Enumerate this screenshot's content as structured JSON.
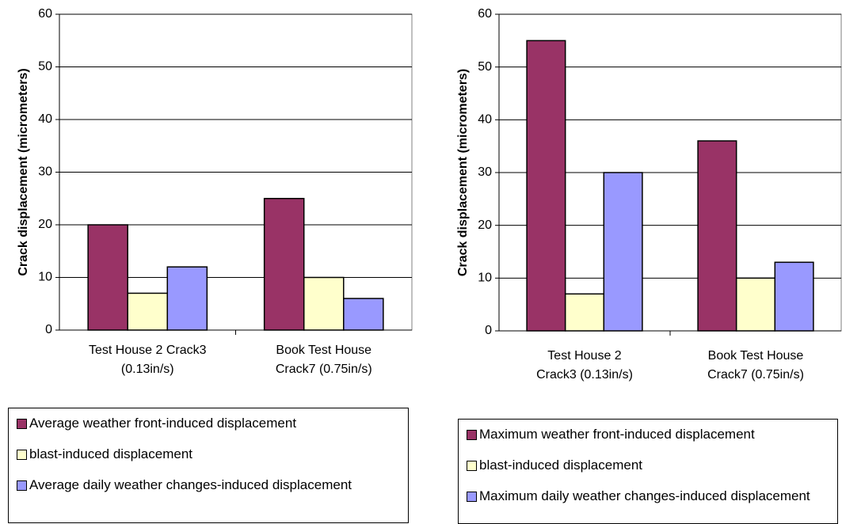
{
  "chart_data": [
    {
      "type": "bar",
      "y_label": "Crack displacement (micrometers)",
      "categories": [
        [
          "Test House 2  Crack3",
          "(0.13in/s)"
        ],
        [
          "Book Test House",
          "Crack7 (0.75in/s)"
        ]
      ],
      "series": [
        {
          "name": "Average weather front-induced displacement",
          "color": "#993366",
          "values": [
            20,
            25
          ]
        },
        {
          "name": "blast-induced displacement",
          "color": "#ffffcc",
          "values": [
            7,
            10
          ]
        },
        {
          "name": "Average daily weather changes-induced displacement",
          "color": "#9999ff",
          "values": [
            12,
            6
          ]
        }
      ],
      "ylim": [
        0,
        60
      ],
      "yticks": [
        0,
        10,
        20,
        30,
        40,
        50,
        60
      ],
      "grid": true
    },
    {
      "type": "bar",
      "y_label": "Crack displacement (micrometers)",
      "categories": [
        [
          "Test House 2",
          "Crack3 (0.13in/s)"
        ],
        [
          "Book Test House",
          "Crack7 (0.75in/s)"
        ]
      ],
      "series": [
        {
          "name": "Maximum weather front-induced displacement",
          "color": "#993366",
          "values": [
            55,
            36
          ]
        },
        {
          "name": "blast-induced displacement",
          "color": "#ffffcc",
          "values": [
            7,
            10
          ]
        },
        {
          "name": "Maximum daily weather changes-induced displacement",
          "color": "#9999ff",
          "values": [
            30,
            13
          ]
        }
      ],
      "ylim": [
        0,
        60
      ],
      "yticks": [
        0,
        10,
        20,
        30,
        40,
        50,
        60
      ],
      "grid": true
    }
  ]
}
